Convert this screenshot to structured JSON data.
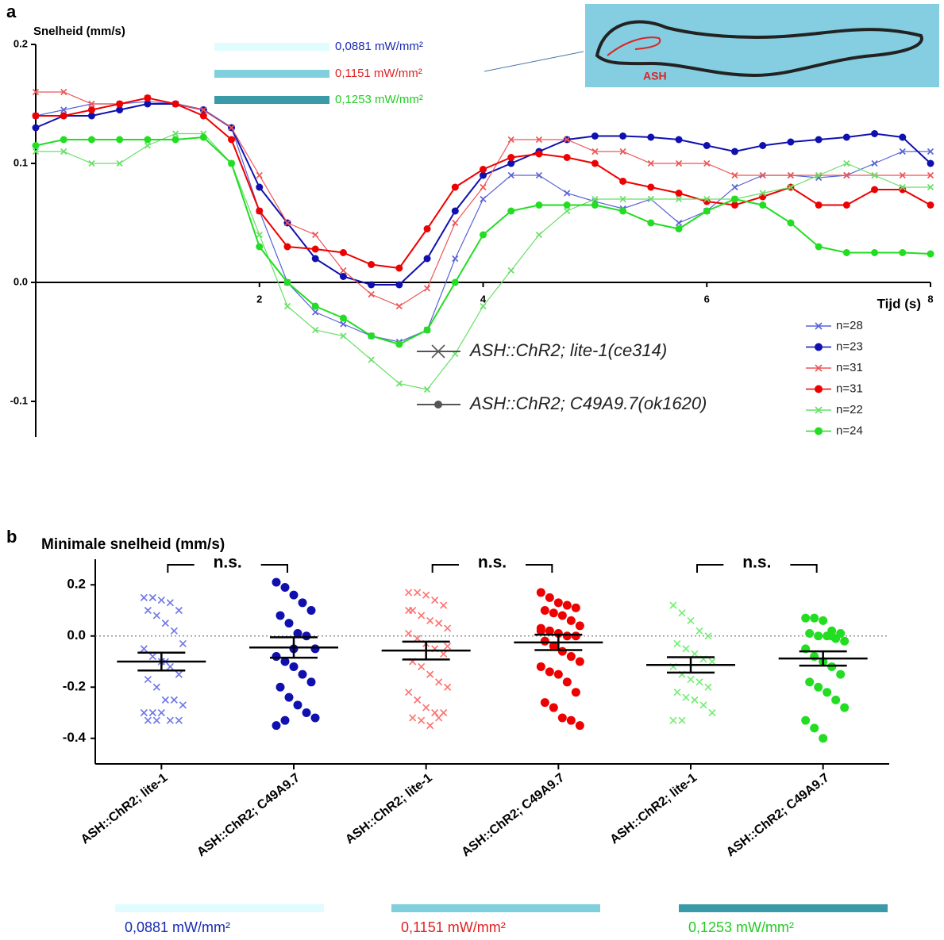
{
  "chart_data": [
    {
      "type": "line",
      "panel": "a",
      "y_label": "Snelheid (mm/s)",
      "x_label": "Tijd (s)",
      "x": [
        0,
        0.25,
        0.5,
        0.75,
        1,
        1.25,
        1.5,
        1.75,
        2,
        2.25,
        2.5,
        2.75,
        3,
        3.25,
        3.5,
        3.75,
        4,
        4.25,
        4.5,
        4.75,
        5,
        5.25,
        5.5,
        5.75,
        6,
        6.25,
        6.5,
        6.75,
        7,
        7.25,
        7.5,
        7.75,
        8
      ],
      "xlim": [
        0,
        8
      ],
      "xticks": [
        2,
        4,
        6,
        8
      ],
      "ylim": [
        -0.13,
        0.2
      ],
      "yticks": [
        -0.1,
        {
          "value": 0,
          "label": "0.0"
        },
        0.1,
        0.2
      ],
      "series": [
        {
          "name": "n=28",
          "color": "#5a63d8",
          "marker": "x",
          "values": [
            0.14,
            0.145,
            0.15,
            0.15,
            0.152,
            0.15,
            0.145,
            0.13,
            0.06,
            0.0,
            -0.025,
            -0.035,
            -0.045,
            -0.05,
            -0.04,
            0.02,
            0.07,
            0.09,
            0.09,
            0.075,
            0.068,
            0.062,
            0.07,
            0.05,
            0.06,
            0.08,
            0.09,
            0.09,
            0.088,
            0.09,
            0.1,
            0.11,
            0.11
          ]
        },
        {
          "name": "n=23",
          "color": "#1010b0",
          "marker": "dot",
          "values": [
            0.13,
            0.14,
            0.14,
            0.145,
            0.15,
            0.15,
            0.145,
            0.13,
            0.08,
            0.05,
            0.02,
            0.005,
            -0.002,
            -0.002,
            0.02,
            0.06,
            0.09,
            0.1,
            0.11,
            0.12,
            0.123,
            0.123,
            0.122,
            0.12,
            0.115,
            0.11,
            0.115,
            0.118,
            0.12,
            0.122,
            0.125,
            0.122,
            0.1
          ]
        },
        {
          "name": "n=31",
          "color": "#ee5555",
          "marker": "x",
          "values": [
            0.16,
            0.16,
            0.15,
            0.15,
            0.155,
            0.15,
            0.145,
            0.13,
            0.09,
            0.05,
            0.04,
            0.01,
            -0.01,
            -0.02,
            -0.005,
            0.05,
            0.08,
            0.12,
            0.12,
            0.12,
            0.11,
            0.11,
            0.1,
            0.1,
            0.1,
            0.09,
            0.09,
            0.09,
            0.09,
            0.09,
            0.09,
            0.09,
            0.09
          ]
        },
        {
          "name": "n=31",
          "color": "#ee0000",
          "marker": "dot",
          "values": [
            0.14,
            0.14,
            0.145,
            0.15,
            0.155,
            0.15,
            0.14,
            0.12,
            0.06,
            0.03,
            0.028,
            0.025,
            0.015,
            0.012,
            0.045,
            0.08,
            0.095,
            0.105,
            0.108,
            0.105,
            0.1,
            0.085,
            0.08,
            0.075,
            0.068,
            0.065,
            0.072,
            0.08,
            0.065,
            0.065,
            0.078,
            0.078,
            0.065
          ]
        },
        {
          "name": "n=22",
          "color": "#66e066",
          "marker": "x",
          "values": [
            0.11,
            0.11,
            0.1,
            0.1,
            0.115,
            0.125,
            0.125,
            0.1,
            0.04,
            -0.02,
            -0.04,
            -0.045,
            -0.065,
            -0.085,
            -0.09,
            -0.06,
            -0.02,
            0.01,
            0.04,
            0.06,
            0.07,
            0.07,
            0.07,
            0.07,
            0.07,
            0.07,
            0.075,
            0.08,
            0.09,
            0.1,
            0.09,
            0.08,
            0.08
          ]
        },
        {
          "name": "n=24",
          "color": "#22dd22",
          "marker": "dot",
          "values": [
            0.115,
            0.12,
            0.12,
            0.12,
            0.12,
            0.12,
            0.122,
            0.1,
            0.03,
            0.0,
            -0.02,
            -0.03,
            -0.045,
            -0.052,
            -0.04,
            0.0,
            0.04,
            0.06,
            0.065,
            0.065,
            0.065,
            0.06,
            0.05,
            0.045,
            0.06,
            0.07,
            0.065,
            0.05,
            0.03,
            0.025,
            0.025,
            0.025,
            0.024
          ]
        }
      ],
      "marker_legend": [
        {
          "label": "ASH::ChR2; lite-1(ce314)",
          "marker": "x"
        },
        {
          "label": "ASH::ChR2; C49A9.7(ok1620)",
          "marker": "dot"
        }
      ],
      "intensities": [
        {
          "label": "0,0881 mW/mm²",
          "color": "#1a2bb0",
          "band_color": "#e0fcff"
        },
        {
          "label": "0,1151 mW/mm²",
          "color": "#e02020",
          "band_color": "#7fcfdc"
        },
        {
          "label": "0,1253 mW/mm²",
          "color": "#22cc22",
          "band_color": "#3a9aa8"
        }
      ],
      "inset_label": "ASH"
    },
    {
      "type": "dot",
      "panel": "b",
      "y_label": "Minimale snelheid (mm/s)",
      "ylim": [
        -0.5,
        0.3
      ],
      "yticks": [
        -0.4,
        -0.2,
        {
          "value": 0,
          "label": "0.0"
        },
        0.2
      ],
      "categories": [
        "ASH::ChR2; lite-1",
        "ASH::ChR2; C49A9.7",
        "ASH::ChR2; lite-1",
        "ASH::ChR2; C49A9.7",
        "ASH::ChR2; lite-1",
        "ASH::ChR2; C49A9.7"
      ],
      "groups": [
        {
          "color": "#6f77e8",
          "marker": "x",
          "mean": -0.1,
          "sem": 0.035,
          "values": [
            0.15,
            0.15,
            0.14,
            0.13,
            0.1,
            0.1,
            0.08,
            0.05,
            0.02,
            -0.03,
            -0.05,
            -0.08,
            -0.1,
            -0.12,
            -0.15,
            -0.17,
            -0.2,
            -0.25,
            -0.25,
            -0.27,
            -0.3,
            -0.3,
            -0.3,
            -0.33,
            -0.33,
            -0.33,
            -0.33,
            -0.1
          ]
        },
        {
          "color": "#1010b0",
          "marker": "dot",
          "mean": -0.045,
          "sem": 0.04,
          "values": [
            0.21,
            0.19,
            0.16,
            0.13,
            0.1,
            0.08,
            0.05,
            0.01,
            0.0,
            -0.05,
            -0.08,
            -0.1,
            -0.12,
            -0.15,
            -0.18,
            -0.2,
            -0.24,
            -0.27,
            -0.3,
            -0.32,
            -0.35,
            -0.33,
            -0.05
          ]
        },
        {
          "color": "#ff7070",
          "marker": "x",
          "mean": -0.057,
          "sem": 0.035,
          "values": [
            0.17,
            0.17,
            0.16,
            0.14,
            0.12,
            0.1,
            0.08,
            0.06,
            0.05,
            0.03,
            0.01,
            -0.01,
            -0.03,
            -0.05,
            -0.07,
            -0.1,
            -0.12,
            -0.15,
            -0.18,
            -0.2,
            -0.22,
            -0.25,
            -0.28,
            -0.3,
            -0.3,
            -0.32,
            -0.33,
            -0.35,
            -0.32,
            -0.04,
            0.1
          ]
        },
        {
          "color": "#ee0000",
          "marker": "dot",
          "mean": -0.025,
          "sem": 0.03,
          "values": [
            0.17,
            0.15,
            0.13,
            0.12,
            0.11,
            0.1,
            0.09,
            0.08,
            0.06,
            0.04,
            0.02,
            0.02,
            0.01,
            0.0,
            0.0,
            -0.02,
            -0.04,
            -0.06,
            -0.08,
            -0.1,
            -0.12,
            -0.14,
            -0.15,
            -0.18,
            -0.22,
            -0.26,
            -0.28,
            -0.32,
            -0.33,
            -0.35,
            0.03
          ]
        },
        {
          "color": "#70ee70",
          "marker": "x",
          "mean": -0.113,
          "sem": 0.03,
          "values": [
            0.12,
            0.09,
            0.06,
            0.02,
            0.0,
            -0.03,
            -0.05,
            -0.07,
            -0.09,
            -0.1,
            -0.12,
            -0.15,
            -0.17,
            -0.18,
            -0.2,
            -0.22,
            -0.24,
            -0.25,
            -0.27,
            -0.3,
            -0.33,
            -0.33
          ]
        },
        {
          "color": "#22dd22",
          "marker": "dot",
          "mean": -0.088,
          "sem": 0.028,
          "values": [
            0.07,
            0.07,
            0.06,
            0.02,
            0.01,
            0.01,
            0.0,
            0.0,
            -0.01,
            -0.02,
            -0.05,
            -0.08,
            -0.1,
            -0.12,
            -0.15,
            -0.18,
            -0.2,
            -0.22,
            -0.25,
            -0.28,
            -0.33,
            -0.36,
            -0.4,
            0.0
          ]
        }
      ],
      "annotations": [
        "n.s.",
        "n.s.",
        "n.s."
      ],
      "intensities": [
        {
          "label": "0,0881 mW/mm²",
          "color": "#1a2bb0",
          "band_color": "#e0fcff"
        },
        {
          "label": "0,1151 mW/mm²",
          "color": "#e02020",
          "band_color": "#7fcfdc"
        },
        {
          "label": "0,1253 mW/mm²",
          "color": "#22cc22",
          "band_color": "#3a9aa8"
        }
      ]
    }
  ]
}
